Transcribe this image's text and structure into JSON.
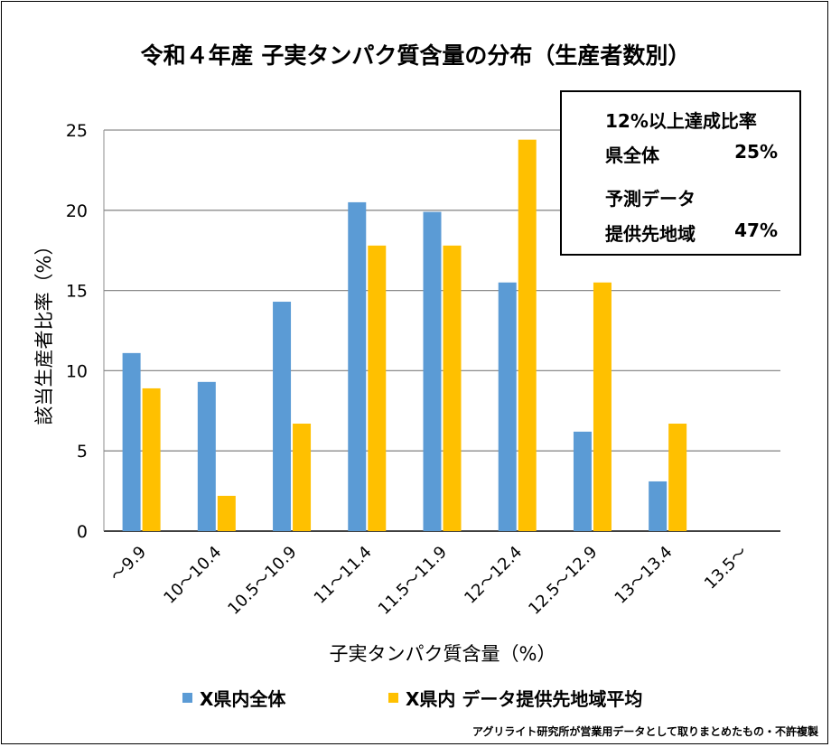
{
  "chart_data": {
    "type": "bar",
    "title": "令和４年産 子実タンパク質含量の分布（生産者数別）",
    "xlabel": "子実タンパク質含量（%）",
    "ylabel": "該当生産者比率（%）",
    "ylim": [
      0,
      25
    ],
    "yticks": [
      0,
      5,
      10,
      15,
      20,
      25
    ],
    "grid": true,
    "legend_position": "bottom",
    "categories": [
      "～9.9",
      "10～10.4",
      "10.5～10.9",
      "11～11.4",
      "11.5～11.9",
      "12～12.4",
      "12.5～12.9",
      "13～13.4",
      "13.5～"
    ],
    "series": [
      {
        "name": "X県内全体",
        "color": "#5b9bd5",
        "values": [
          11.1,
          9.3,
          14.3,
          20.5,
          19.9,
          15.5,
          6.2,
          3.1,
          0
        ]
      },
      {
        "name": "X県内 データ提供先地域平均",
        "color": "#ffc000",
        "values": [
          8.9,
          2.2,
          6.7,
          17.8,
          17.8,
          24.4,
          15.5,
          6.7,
          0
        ]
      }
    ],
    "annotation": {
      "heading": "12%以上達成比率",
      "row1_label": "県全体",
      "row1_value": "25%",
      "row2_label1": "予測データ",
      "row2_label2": "提供先地域",
      "row2_value": "47%"
    }
  },
  "credit": "アグリライト研究所が営業用データとして取りまとめたもの・不許複製"
}
